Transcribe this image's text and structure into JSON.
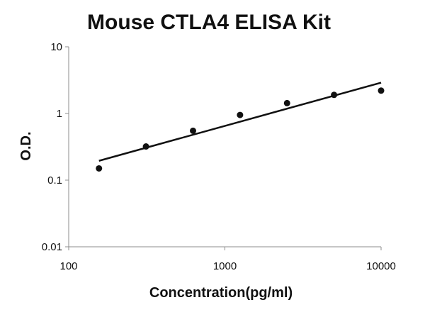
{
  "chart_data": {
    "type": "scatter",
    "title": "Mouse CTLA4 ELISA Kit",
    "xlabel": "Concentration(pg/ml)",
    "ylabel": "O.D.",
    "x_scale": "log",
    "y_scale": "log",
    "xlim": [
      100,
      10000
    ],
    "ylim": [
      0.01,
      10
    ],
    "x_ticks": [
      100,
      1000,
      10000
    ],
    "x_tick_labels": [
      "100",
      "1000",
      "10000"
    ],
    "y_ticks": [
      0.01,
      0.1,
      1,
      10
    ],
    "y_tick_labels": [
      "0.01",
      "0.1",
      "1",
      "10"
    ],
    "grid": false,
    "series": [
      {
        "x": [
          156.25,
          312.5,
          625,
          1250,
          2500,
          5000,
          10000
        ],
        "y": [
          0.15,
          0.32,
          0.55,
          0.95,
          1.43,
          1.9,
          2.2
        ]
      }
    ],
    "fit_line": {
      "x": [
        156.25,
        10000
      ],
      "y": [
        0.195,
        2.9
      ]
    },
    "colors": {
      "marks": "#111111",
      "axes": "#8c8c8c"
    }
  }
}
